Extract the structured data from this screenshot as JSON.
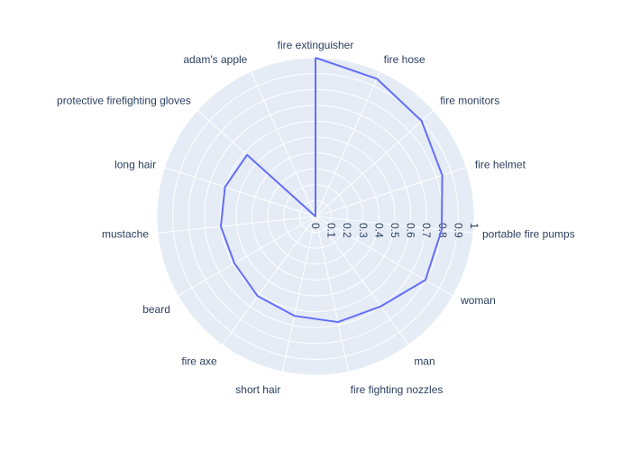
{
  "chart_data": {
    "type": "polar-line",
    "title": "",
    "categories": [
      "fire extinguisher",
      "fire hose",
      "fire monitors",
      "fire helmet",
      "portable fire pumps",
      "woman",
      "man",
      "fire fighting nozzles",
      "short hair",
      "fire axe",
      "beard",
      "mustache",
      "long hair",
      "protective firefighting gloves",
      "adam's apple"
    ],
    "series": [
      {
        "values": [
          1.0,
          0.95,
          0.9,
          0.84,
          0.8,
          0.8,
          0.7,
          0.68,
          0.64,
          0.62,
          0.59,
          0.6,
          0.6,
          0.58,
          0.0
        ]
      }
    ],
    "radial_range": [
      0,
      1
    ],
    "radial_ticks": [
      "0",
      "0.1",
      "0.2",
      "0.3",
      "0.4",
      "0.5",
      "0.6",
      "0.7",
      "0.8",
      "0.9",
      "1"
    ],
    "direction": "clockwise",
    "start_angle": "top",
    "grid": true,
    "colors": {
      "line": "#636efa",
      "polar_background": "#e5ecf6",
      "grid": "#ffffff",
      "text": "#2a3f5f"
    }
  }
}
